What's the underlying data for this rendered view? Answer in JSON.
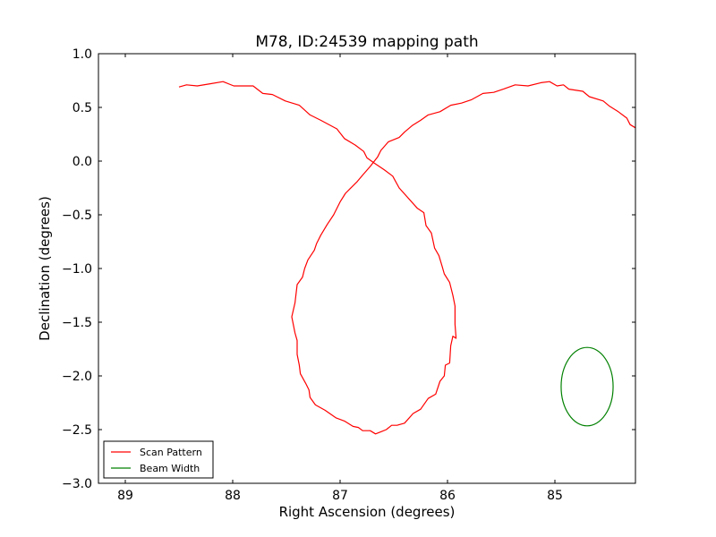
{
  "chart_data": {
    "type": "line",
    "title": "M78, ID:24539 mapping path",
    "xlabel": "Right Ascension (degrees)",
    "ylabel": "Declination (degrees)",
    "xlim": [
      89.25,
      84.25
    ],
    "ylim": [
      -3.0,
      1.0
    ],
    "x_inverted": true,
    "grid": false,
    "legend_placement": "lower-left",
    "xticks": [
      {
        "value": 89,
        "label": "89"
      },
      {
        "value": 88,
        "label": "88"
      },
      {
        "value": 87,
        "label": "87"
      },
      {
        "value": 86,
        "label": "86"
      },
      {
        "value": 85,
        "label": "85"
      }
    ],
    "yticks": [
      {
        "value": 1.0,
        "label": "1.0"
      },
      {
        "value": 0.5,
        "label": "0.5"
      },
      {
        "value": 0.0,
        "label": "0.0"
      },
      {
        "value": -0.5,
        "label": "−0.5"
      },
      {
        "value": -1.0,
        "label": "−1.0"
      },
      {
        "value": -1.5,
        "label": "−1.5"
      },
      {
        "value": -2.0,
        "label": "−2.0"
      },
      {
        "value": -2.5,
        "label": "−2.5"
      },
      {
        "value": -3.0,
        "label": "−3.0"
      }
    ],
    "series": [
      {
        "name": "Scan Pattern",
        "color": "#ff0000",
        "points": [
          [
            88.5,
            0.69
          ],
          [
            88.43,
            0.71
          ],
          [
            88.33,
            0.7
          ],
          [
            88.21,
            0.72
          ],
          [
            88.09,
            0.74
          ],
          [
            87.99,
            0.7
          ],
          [
            87.81,
            0.7
          ],
          [
            87.72,
            0.63
          ],
          [
            87.63,
            0.62
          ],
          [
            87.51,
            0.56
          ],
          [
            87.38,
            0.52
          ],
          [
            87.28,
            0.43
          ],
          [
            87.18,
            0.38
          ],
          [
            87.03,
            0.3
          ],
          [
            86.96,
            0.21
          ],
          [
            86.86,
            0.15
          ],
          [
            86.78,
            0.09
          ],
          [
            86.75,
            0.03
          ],
          [
            86.68,
            -0.02
          ],
          [
            86.59,
            -0.08
          ],
          [
            86.51,
            -0.14
          ],
          [
            86.45,
            -0.25
          ],
          [
            86.28,
            -0.44
          ],
          [
            86.22,
            -0.48
          ],
          [
            86.2,
            -0.6
          ],
          [
            86.15,
            -0.67
          ],
          [
            86.12,
            -0.81
          ],
          [
            86.08,
            -0.88
          ],
          [
            86.05,
            -0.98
          ],
          [
            86.03,
            -1.05
          ],
          [
            85.98,
            -1.13
          ],
          [
            85.95,
            -1.25
          ],
          [
            85.93,
            -1.35
          ],
          [
            85.93,
            -1.52
          ],
          [
            85.92,
            -1.65
          ],
          [
            85.95,
            -1.63
          ],
          [
            85.97,
            -1.72
          ],
          [
            85.98,
            -1.88
          ],
          [
            86.02,
            -1.9
          ],
          [
            86.03,
            -2.0
          ],
          [
            86.07,
            -2.05
          ],
          [
            86.11,
            -2.17
          ],
          [
            86.18,
            -2.21
          ],
          [
            86.25,
            -2.31
          ],
          [
            86.32,
            -2.35
          ],
          [
            86.4,
            -2.44
          ],
          [
            86.47,
            -2.46
          ],
          [
            86.52,
            -2.46
          ],
          [
            86.57,
            -2.5
          ],
          [
            86.62,
            -2.52
          ],
          [
            86.67,
            -2.54
          ],
          [
            86.72,
            -2.51
          ],
          [
            86.79,
            -2.51
          ],
          [
            86.83,
            -2.48
          ],
          [
            86.88,
            -2.47
          ],
          [
            86.96,
            -2.42
          ],
          [
            87.04,
            -2.39
          ],
          [
            87.14,
            -2.32
          ],
          [
            87.23,
            -2.27
          ],
          [
            87.28,
            -2.2
          ],
          [
            87.29,
            -2.13
          ],
          [
            87.32,
            -2.07
          ],
          [
            87.37,
            -1.98
          ],
          [
            87.38,
            -1.9
          ],
          [
            87.4,
            -1.8
          ],
          [
            87.4,
            -1.67
          ],
          [
            87.42,
            -1.6
          ],
          [
            87.45,
            -1.45
          ],
          [
            87.42,
            -1.32
          ],
          [
            87.4,
            -1.15
          ],
          [
            87.35,
            -1.08
          ],
          [
            87.33,
            -1.0
          ],
          [
            87.3,
            -0.92
          ],
          [
            87.24,
            -0.83
          ],
          [
            87.22,
            -0.77
          ],
          [
            87.18,
            -0.69
          ],
          [
            87.12,
            -0.59
          ],
          [
            87.06,
            -0.5
          ],
          [
            87.0,
            -0.38
          ],
          [
            86.95,
            -0.3
          ],
          [
            86.91,
            -0.26
          ],
          [
            86.84,
            -0.19
          ],
          [
            86.79,
            -0.13
          ],
          [
            86.72,
            -0.05
          ],
          [
            86.65,
            0.04
          ],
          [
            86.62,
            0.1
          ],
          [
            86.55,
            0.18
          ],
          [
            86.45,
            0.22
          ],
          [
            86.4,
            0.27
          ],
          [
            86.33,
            0.33
          ],
          [
            86.25,
            0.38
          ],
          [
            86.18,
            0.43
          ],
          [
            86.07,
            0.46
          ],
          [
            85.97,
            0.52
          ],
          [
            85.87,
            0.54
          ],
          [
            85.78,
            0.57
          ],
          [
            85.67,
            0.63
          ],
          [
            85.57,
            0.64
          ],
          [
            85.48,
            0.67
          ],
          [
            85.37,
            0.71
          ],
          [
            85.25,
            0.7
          ],
          [
            85.13,
            0.73
          ],
          [
            85.05,
            0.74
          ],
          [
            84.98,
            0.7
          ],
          [
            84.92,
            0.71
          ],
          [
            84.87,
            0.67
          ],
          [
            84.74,
            0.65
          ],
          [
            84.68,
            0.6
          ],
          [
            84.55,
            0.56
          ],
          [
            84.49,
            0.51
          ],
          [
            84.41,
            0.46
          ],
          [
            84.33,
            0.4
          ],
          [
            84.3,
            0.34
          ],
          [
            84.25,
            0.31
          ]
        ]
      },
      {
        "name": "Beam Width",
        "color": "#008000",
        "shape": "circle",
        "center": [
          84.7,
          -2.1
        ],
        "radius_x": 0.242,
        "radius_y": 0.365
      }
    ]
  }
}
